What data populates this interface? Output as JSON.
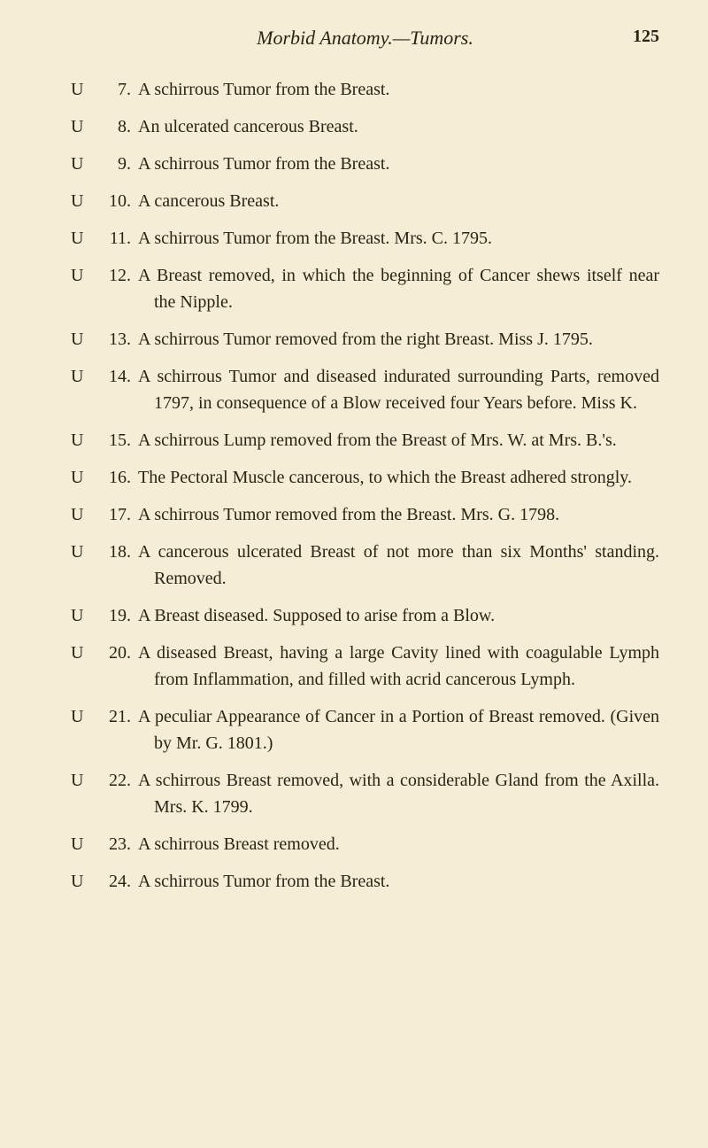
{
  "header": {
    "title": "Morbid Anatomy.—Tumors.",
    "pageNumber": "125"
  },
  "entries": [
    {
      "label": "U",
      "num": "7.",
      "text": "A schirrous Tumor from the Breast."
    },
    {
      "label": "U",
      "num": "8.",
      "text": "An ulcerated cancerous Breast."
    },
    {
      "label": "U",
      "num": "9.",
      "text": "A schirrous Tumor from the Breast."
    },
    {
      "label": "U",
      "num": "10.",
      "text": "A cancerous Breast."
    },
    {
      "label": "U",
      "num": "11.",
      "text": "A schirrous Tumor from the Breast. Mrs. C. 1795."
    },
    {
      "label": "U",
      "num": "12.",
      "text": "A Breast removed, in which the beginning of Cancer shews itself near the Nipple."
    },
    {
      "label": "U",
      "num": "13.",
      "text": "A schirrous Tumor removed from the right Breast. Miss J. 1795."
    },
    {
      "label": "U",
      "num": "14.",
      "text": "A schirrous Tumor and diseased indurated surrounding Parts, removed 1797, in consequence of a Blow received four Years before. Miss K."
    },
    {
      "label": "U",
      "num": "15.",
      "text": "A schirrous Lump removed from the Breast of Mrs. W. at Mrs. B.'s."
    },
    {
      "label": "U",
      "num": "16.",
      "text": "The Pectoral Muscle cancerous, to which the Breast adhered strongly."
    },
    {
      "label": "U",
      "num": "17.",
      "text": "A schirrous Tumor removed from the Breast. Mrs. G. 1798."
    },
    {
      "label": "U",
      "num": "18.",
      "text": "A cancerous ulcerated Breast of not more than six Months' standing. Removed."
    },
    {
      "label": "U",
      "num": "19.",
      "text": "A Breast diseased. Supposed to arise from a Blow."
    },
    {
      "label": "U",
      "num": "20.",
      "text": "A diseased Breast, having a large Cavity lined with coagulable Lymph from Inflammation, and filled with acrid cancerous Lymph."
    },
    {
      "label": "U",
      "num": "21.",
      "text": "A peculiar Appearance of Cancer in a Portion of Breast removed. (Given by Mr. G. 1801.)"
    },
    {
      "label": "U",
      "num": "22.",
      "text": "A schirrous Breast removed, with a considerable Gland from the Axilla. Mrs. K. 1799."
    },
    {
      "label": "U",
      "num": "23.",
      "text": "A schirrous Breast removed."
    },
    {
      "label": "U",
      "num": "24.",
      "text": "A schirrous Tumor from the Breast."
    }
  ],
  "styling": {
    "backgroundColor": "#f5edd6",
    "textColor": "#2a2416",
    "fontSize": 20,
    "titleFontSize": 22,
    "fontFamily": "Georgia, Times New Roman, serif",
    "lineHeight": 1.5
  }
}
